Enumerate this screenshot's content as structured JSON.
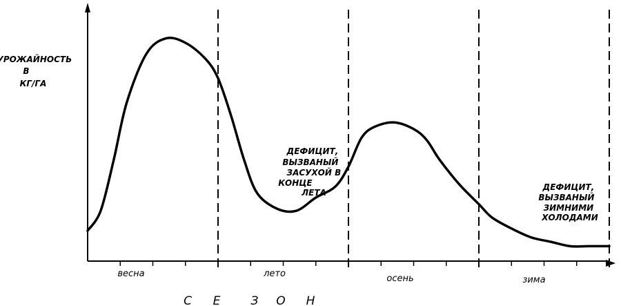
{
  "chart_data": {
    "type": "line",
    "ylabel": [
      "УРОЖАЙНОСТЬ",
      "В",
      "КГ/ГА"
    ],
    "xlabel": [
      "С",
      "Е",
      "З",
      "О",
      "Н"
    ],
    "seasons": [
      "весна",
      "лето",
      "осень",
      "зима"
    ],
    "x_units": "season (0–4)",
    "y_scale": "relative, 0–1 (no ticks printed)",
    "series": [
      {
        "x": [
          0,
          0.1,
          0.2,
          0.3,
          0.45,
          0.6,
          0.75,
          0.9,
          1.0,
          1.1,
          1.2,
          1.3,
          1.45,
          1.6,
          1.75,
          1.9,
          2.0,
          2.1,
          2.2,
          2.35,
          2.5,
          2.6,
          2.7,
          2.85,
          3.0,
          3.1,
          3.25,
          3.4,
          3.55,
          3.7,
          3.85,
          4.0
        ],
        "y": [
          0.1,
          0.19,
          0.42,
          0.68,
          0.9,
          0.97,
          0.95,
          0.88,
          0.79,
          0.62,
          0.42,
          0.27,
          0.2,
          0.19,
          0.25,
          0.3,
          0.39,
          0.52,
          0.57,
          0.59,
          0.56,
          0.51,
          0.42,
          0.31,
          0.22,
          0.16,
          0.11,
          0.07,
          0.05,
          0.03,
          0.03,
          0.03
        ]
      }
    ],
    "boundaries": [
      1,
      2,
      3,
      4
    ],
    "annotations": [
      {
        "lines": [
          "ДЕФИЦИТ,",
          "ВЫЗВАНЫЙ",
          "ЗАСУХОЙ В",
          "КОНЦЕ",
          "ЛЕТА"
        ]
      },
      {
        "lines": [
          "ДЕФИЦИТ,",
          "ВЫЗВАНЫЙ",
          "ЗИМНИМИ",
          "ХОЛОДАМИ"
        ]
      }
    ],
    "grid": false,
    "legend": "none"
  }
}
